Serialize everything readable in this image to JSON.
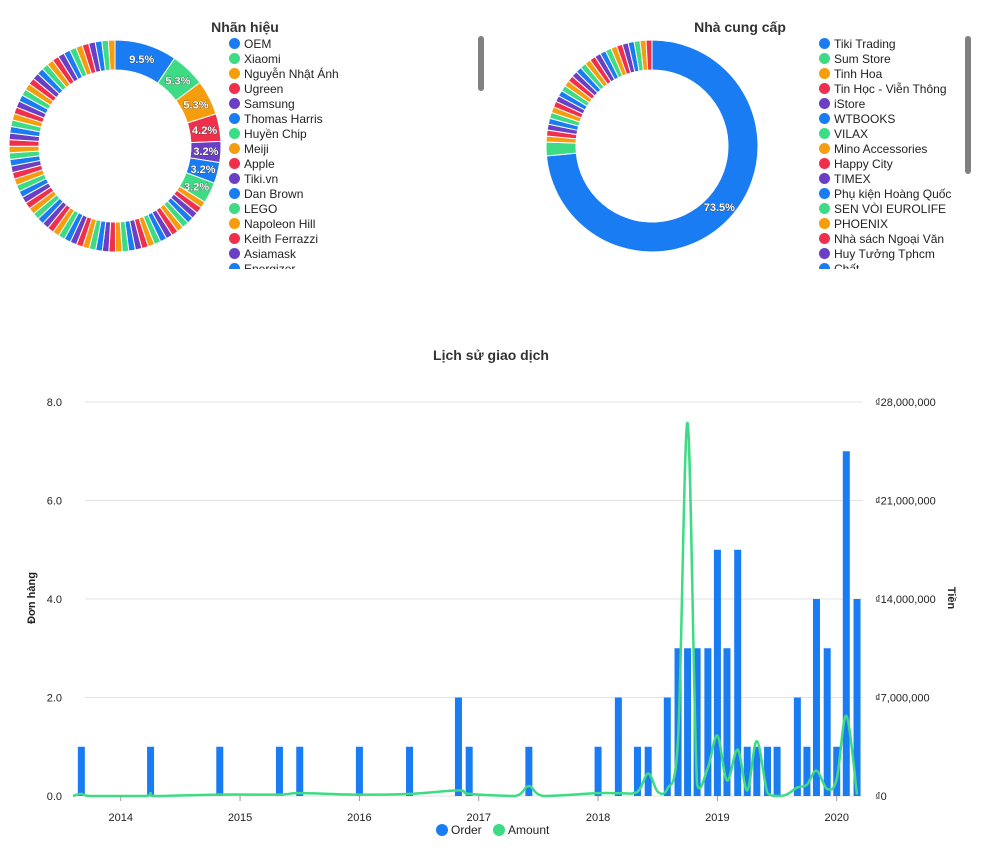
{
  "colors": {
    "blue": "#1a7cf2",
    "green": "#3ddb84",
    "orange": "#f59d0c",
    "red": "#ef2f4c",
    "purple": "#6b3fc4",
    "grid": "#e3e3e3",
    "text": "#222222"
  },
  "brand_chart": {
    "title": "Nhãn hiệu",
    "legend": [
      {
        "label": "OEM",
        "color": "#1a7cf2"
      },
      {
        "label": "Xiaomi",
        "color": "#3ddb84"
      },
      {
        "label": "Nguyễn Nhật Ánh",
        "color": "#f59d0c"
      },
      {
        "label": "Ugreen",
        "color": "#ef2f4c"
      },
      {
        "label": "Samsung",
        "color": "#6b3fc4"
      },
      {
        "label": "Thomas Harris",
        "color": "#1a7cf2"
      },
      {
        "label": "Huyền Chip",
        "color": "#3ddb84"
      },
      {
        "label": "Meiji",
        "color": "#f59d0c"
      },
      {
        "label": "Apple",
        "color": "#ef2f4c"
      },
      {
        "label": "Tiki.vn",
        "color": "#6b3fc4"
      },
      {
        "label": "Dan Brown",
        "color": "#1a7cf2"
      },
      {
        "label": "LEGO",
        "color": "#3ddb84"
      },
      {
        "label": "Napoleon Hill",
        "color": "#f59d0c"
      },
      {
        "label": "Keith Ferrazzi",
        "color": "#ef2f4c"
      },
      {
        "label": "Asiamask",
        "color": "#6b3fc4"
      },
      {
        "label": "Energizer",
        "color": "#1a7cf2"
      }
    ],
    "slices": [
      9.5,
      5.3,
      5.3,
      4.2,
      3.2,
      3.2,
      3.2
    ],
    "slice_labels": [
      "9.5%",
      "5.3%",
      "5.3%",
      "4.2%",
      "3.2%",
      "3.2%",
      "3.2%"
    ],
    "small_slice_value": 1.0
  },
  "supplier_chart": {
    "title": "Nhà cung cấp",
    "legend": [
      {
        "label": "Tiki Trading",
        "color": "#1a7cf2"
      },
      {
        "label": "Sum Store",
        "color": "#3ddb84"
      },
      {
        "label": "Tinh Hoa",
        "color": "#f59d0c"
      },
      {
        "label": "Tin Học - Viễn Thông",
        "color": "#ef2f4c"
      },
      {
        "label": "iStore",
        "color": "#6b3fc4"
      },
      {
        "label": "WTBOOKS",
        "color": "#1a7cf2"
      },
      {
        "label": "VILAX",
        "color": "#3ddb84"
      },
      {
        "label": "Mino Accessories",
        "color": "#f59d0c"
      },
      {
        "label": "Happy City",
        "color": "#ef2f4c"
      },
      {
        "label": "TIMEX",
        "color": "#6b3fc4"
      },
      {
        "label": "Phụ kiện Hoàng Quốc",
        "color": "#1a7cf2"
      },
      {
        "label": "SEN VÒI EUROLIFE",
        "color": "#3ddb84"
      },
      {
        "label": "PHOENIX",
        "color": "#f59d0c"
      },
      {
        "label": "Nhà sách Ngoại Văn",
        "color": "#ef2f4c"
      },
      {
        "label": "Huy Tưởng Tphcm",
        "color": "#6b3fc4"
      },
      {
        "label": "Chất",
        "color": "#1a7cf2"
      }
    ],
    "main_value": 73.5,
    "main_label": "73.5%",
    "second_value": 2.1,
    "small_slice_value": 0.9
  },
  "chart_data": {
    "type": "bar",
    "title": "Lịch sử giao dịch",
    "ylabel": "Đơn hàng",
    "y2label": "Tiền",
    "ylim": [
      0,
      8
    ],
    "y2lim": [
      0,
      28000000
    ],
    "yticks": [
      "0.0",
      "2.0",
      "4.0",
      "6.0",
      "8.0"
    ],
    "y2ticks": [
      "₫0",
      "₫7,000,000",
      "₫14,000,000",
      "₫21,000,000",
      "₫28,000,000"
    ],
    "xlim": [
      2013.6,
      2020.22
    ],
    "xticks": [
      "2014",
      "2015",
      "2016",
      "2017",
      "2018",
      "2019",
      "2020"
    ],
    "legend": [
      {
        "label": "Order",
        "color": "#1a7cf2"
      },
      {
        "label": "Amount",
        "color": "#3ddb84"
      }
    ],
    "series": [
      {
        "name": "Order",
        "type": "bar",
        "x": [
          2013.67,
          2014.25,
          2014.83,
          2015.33,
          2015.5,
          2016.0,
          2016.42,
          2016.83,
          2016.92,
          2017.42,
          2018.0,
          2018.17,
          2018.33,
          2018.42,
          2018.58,
          2018.67,
          2018.75,
          2018.83,
          2018.92,
          2019.0,
          2019.08,
          2019.17,
          2019.25,
          2019.33,
          2019.42,
          2019.5,
          2019.67,
          2019.75,
          2019.83,
          2019.92,
          2020.0,
          2020.08,
          2020.17
        ],
        "values": [
          1,
          1,
          1,
          1,
          1,
          1,
          1,
          2,
          1,
          1,
          1,
          2,
          1,
          1,
          2,
          3,
          3,
          3,
          3,
          5,
          3,
          5,
          1,
          1,
          1,
          1,
          2,
          1,
          4,
          3,
          1,
          7,
          4
        ]
      },
      {
        "name": "Amount",
        "type": "line",
        "x": [
          2013.6,
          2013.67,
          2013.75,
          2014.2,
          2014.25,
          2014.3,
          2014.83,
          2015.33,
          2015.5,
          2016.0,
          2016.42,
          2016.83,
          2016.92,
          2017.3,
          2017.42,
          2017.55,
          2018.0,
          2018.17,
          2018.33,
          2018.42,
          2018.5,
          2018.58,
          2018.67,
          2018.75,
          2018.83,
          2018.92,
          2019.0,
          2019.08,
          2019.17,
          2019.25,
          2019.33,
          2019.42,
          2019.5,
          2019.58,
          2019.67,
          2019.75,
          2019.83,
          2019.92,
          2020.0,
          2020.08,
          2020.17
        ],
        "values": [
          0,
          150000,
          0,
          0,
          200000,
          0,
          100000,
          100000,
          200000,
          100000,
          150000,
          400000,
          150000,
          0,
          700000,
          0,
          200000,
          200000,
          300000,
          1600000,
          300000,
          500000,
          4000000,
          26500000,
          800000,
          2000000,
          4300000,
          1100000,
          3300000,
          400000,
          3900000,
          200000,
          0,
          100000,
          600000,
          800000,
          1800000,
          500000,
          1200000,
          5700000,
          100000
        ]
      }
    ]
  }
}
